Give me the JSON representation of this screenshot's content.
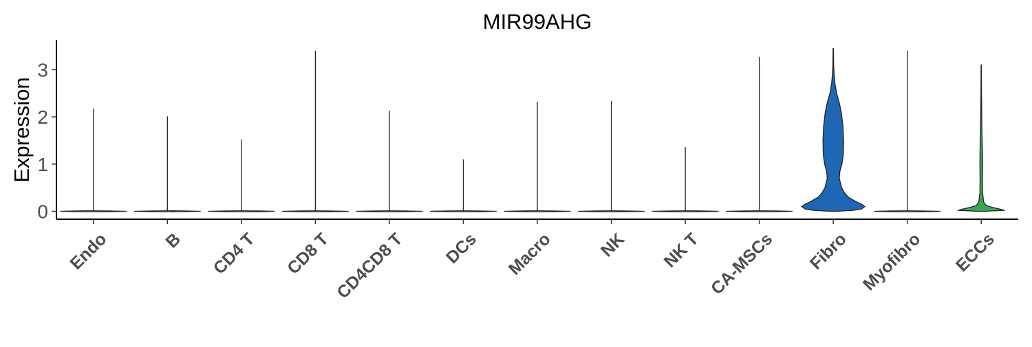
{
  "chart_data": {
    "type": "violin",
    "title": "MIR99AHG",
    "xlabel": "",
    "ylabel": "Expression",
    "ylim": [
      -0.18,
      3.62
    ],
    "yticks": [
      "0",
      "1",
      "2",
      "3"
    ],
    "grid": false,
    "legend": "none",
    "categories": [
      "Endo",
      "B",
      "CD4 T",
      "CD8 T",
      "CD4CD8 T",
      "DCs",
      "Macro",
      "NK",
      "NK T",
      "CA-MSCs",
      "Fibro",
      "Myofibro",
      "ECCs"
    ],
    "max_values": [
      2.17,
      2.01,
      1.52,
      3.4,
      2.13,
      1.1,
      2.32,
      2.34,
      1.36,
      3.27,
      3.45,
      3.4,
      3.1
    ],
    "fill_colors": [
      "#ffffff",
      "#ffffff",
      "#ffffff",
      "#ffffff",
      "#ffffff",
      "#ffffff",
      "#ffffff",
      "#ffffff",
      "#ffffff",
      "#ffffff",
      "#1f66b5",
      "#ffffff",
      "#3aa655"
    ],
    "density_profiles": [
      [],
      [],
      [],
      [],
      [],
      [],
      [],
      [],
      [],
      [],
      [
        [
          0,
          0.1
        ],
        [
          0.02,
          0.6
        ],
        [
          0.05,
          0.85
        ],
        [
          0.1,
          0.95
        ],
        [
          0.15,
          0.85
        ],
        [
          0.2,
          0.7
        ],
        [
          0.3,
          0.45
        ],
        [
          0.4,
          0.33
        ],
        [
          0.5,
          0.25
        ],
        [
          0.7,
          0.18
        ],
        [
          0.85,
          0.2
        ],
        [
          1.0,
          0.26
        ],
        [
          1.2,
          0.3
        ],
        [
          1.5,
          0.31
        ],
        [
          1.8,
          0.29
        ],
        [
          2.1,
          0.24
        ],
        [
          2.3,
          0.18
        ],
        [
          2.5,
          0.1
        ],
        [
          2.7,
          0.05
        ],
        [
          2.9,
          0.025
        ],
        [
          3.1,
          0.012
        ],
        [
          3.45,
          0.006
        ]
      ],
      [],
      [
        [
          0,
          0.1
        ],
        [
          0.02,
          0.7
        ],
        [
          0.05,
          0.55
        ],
        [
          0.08,
          0.35
        ],
        [
          0.12,
          0.15
        ],
        [
          0.2,
          0.07
        ],
        [
          0.4,
          0.04
        ],
        [
          0.7,
          0.035
        ],
        [
          1.0,
          0.04
        ],
        [
          1.3,
          0.035
        ],
        [
          1.6,
          0.025
        ],
        [
          2.0,
          0.015
        ],
        [
          2.5,
          0.008
        ],
        [
          3.1,
          0.004
        ]
      ]
    ]
  }
}
